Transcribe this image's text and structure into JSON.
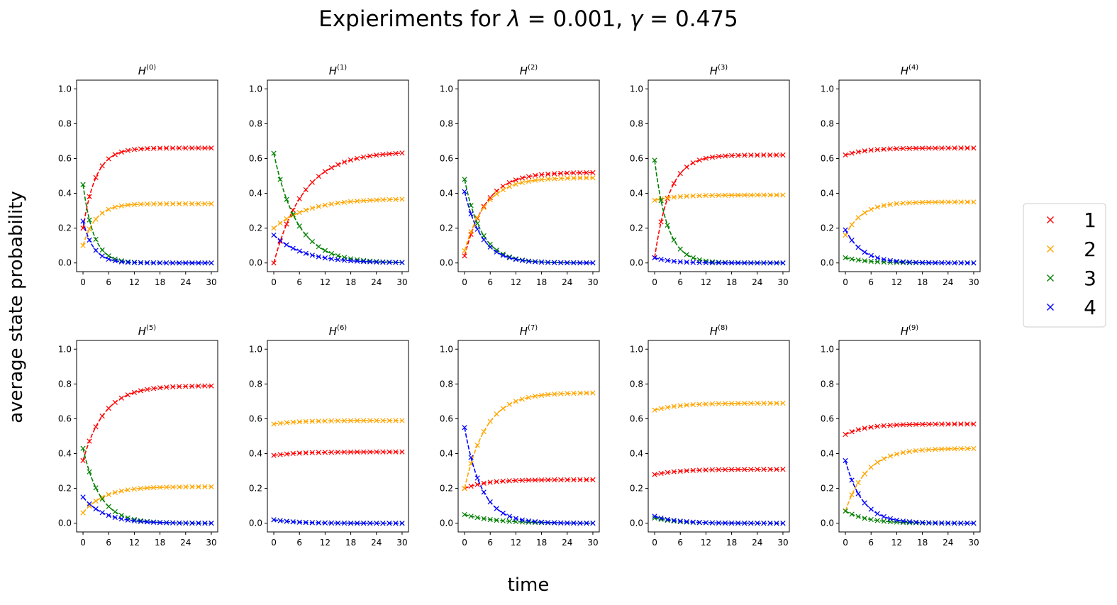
{
  "figure": {
    "title_prefix": "Expieriments for ",
    "title_lambda_symbol": "λ",
    "title_lambda_value": " = 0.001, ",
    "title_gamma_symbol": "γ",
    "title_gamma_value": " = 0.475",
    "xlabel": "time",
    "ylabel": "average state probability"
  },
  "colors": {
    "1": "#ff0000",
    "2": "#ffa500",
    "3": "#008000",
    "4": "#0000ff"
  },
  "legend": [
    {
      "key": "1",
      "label": "1"
    },
    {
      "key": "2",
      "label": "2"
    },
    {
      "key": "3",
      "label": "3"
    },
    {
      "key": "4",
      "label": "4"
    }
  ],
  "chart_data": [
    {
      "type": "line",
      "title_base": "H",
      "title_sup": "(0)",
      "xlim": [
        0,
        30
      ],
      "ylim": [
        0,
        1
      ],
      "xticks": [
        "0",
        "6",
        "12",
        "18",
        "24",
        "30"
      ],
      "yticks": [
        "0.0",
        "0.2",
        "0.4",
        "0.6",
        "0.8",
        "1.0"
      ],
      "series": [
        {
          "key": "1",
          "start": 0.2,
          "end": 0.66,
          "tau": 3.0
        },
        {
          "key": "2",
          "start": 0.1,
          "end": 0.34,
          "tau": 3.0
        },
        {
          "key": "3",
          "start": 0.45,
          "end": 0.0,
          "tau": 2.5
        },
        {
          "key": "4",
          "start": 0.24,
          "end": 0.0,
          "tau": 2.5
        }
      ]
    },
    {
      "type": "line",
      "title_base": "H",
      "title_sup": "(1)",
      "xlim": [
        0,
        30
      ],
      "ylim": [
        0,
        1
      ],
      "xticks": [
        "0",
        "6",
        "12",
        "18",
        "24",
        "30"
      ],
      "yticks": [
        "0.0",
        "0.2",
        "0.4",
        "0.6",
        "0.8",
        "1.0"
      ],
      "series": [
        {
          "key": "1",
          "start": 0.0,
          "end": 0.64,
          "tau": 7.0
        },
        {
          "key": "2",
          "start": 0.2,
          "end": 0.37,
          "tau": 8.0
        },
        {
          "key": "3",
          "start": 0.63,
          "end": 0.0,
          "tau": 5.5
        },
        {
          "key": "4",
          "start": 0.16,
          "end": 0.0,
          "tau": 7.0
        }
      ]
    },
    {
      "type": "line",
      "title_base": "H",
      "title_sup": "(2)",
      "xlim": [
        0,
        30
      ],
      "ylim": [
        0,
        1
      ],
      "xticks": [
        "0",
        "6",
        "12",
        "18",
        "24",
        "30"
      ],
      "yticks": [
        "0.0",
        "0.2",
        "0.4",
        "0.6",
        "0.8",
        "1.0"
      ],
      "series": [
        {
          "key": "1",
          "start": 0.04,
          "end": 0.52,
          "tau": 5.0
        },
        {
          "key": "2",
          "start": 0.07,
          "end": 0.49,
          "tau": 5.0
        },
        {
          "key": "3",
          "start": 0.48,
          "end": 0.0,
          "tau": 4.0
        },
        {
          "key": "4",
          "start": 0.41,
          "end": 0.0,
          "tau": 4.0
        }
      ]
    },
    {
      "type": "line",
      "title_base": "H",
      "title_sup": "(3)",
      "xlim": [
        0,
        30
      ],
      "ylim": [
        0,
        1
      ],
      "xticks": [
        "0",
        "6",
        "12",
        "18",
        "24",
        "30"
      ],
      "yticks": [
        "0.0",
        "0.2",
        "0.4",
        "0.6",
        "0.8",
        "1.0"
      ],
      "series": [
        {
          "key": "1",
          "start": 0.03,
          "end": 0.62,
          "tau": 3.5
        },
        {
          "key": "2",
          "start": 0.36,
          "end": 0.39,
          "tau": 5.0
        },
        {
          "key": "3",
          "start": 0.59,
          "end": 0.0,
          "tau": 3.0
        },
        {
          "key": "4",
          "start": 0.03,
          "end": 0.0,
          "tau": 4.0
        }
      ]
    },
    {
      "type": "line",
      "title_base": "H",
      "title_sup": "(4)",
      "xlim": [
        0,
        30
      ],
      "ylim": [
        0,
        1
      ],
      "xticks": [
        "0",
        "6",
        "12",
        "18",
        "24",
        "30"
      ],
      "yticks": [
        "0.0",
        "0.2",
        "0.4",
        "0.6",
        "0.8",
        "1.0"
      ],
      "series": [
        {
          "key": "1",
          "start": 0.62,
          "end": 0.66,
          "tau": 5.0
        },
        {
          "key": "2",
          "start": 0.16,
          "end": 0.35,
          "tau": 4.0
        },
        {
          "key": "3",
          "start": 0.03,
          "end": 0.0,
          "tau": 5.0
        },
        {
          "key": "4",
          "start": 0.19,
          "end": 0.0,
          "tau": 4.0
        }
      ]
    },
    {
      "type": "line",
      "title_base": "H",
      "title_sup": "(5)",
      "xlim": [
        0,
        30
      ],
      "ylim": [
        0,
        1
      ],
      "xticks": [
        "0",
        "6",
        "12",
        "18",
        "24",
        "30"
      ],
      "yticks": [
        "0.0",
        "0.2",
        "0.4",
        "0.6",
        "0.8",
        "1.0"
      ],
      "series": [
        {
          "key": "1",
          "start": 0.36,
          "end": 0.79,
          "tau": 5.0
        },
        {
          "key": "2",
          "start": 0.06,
          "end": 0.21,
          "tau": 5.0
        },
        {
          "key": "3",
          "start": 0.43,
          "end": 0.0,
          "tau": 4.0
        },
        {
          "key": "4",
          "start": 0.15,
          "end": 0.0,
          "tau": 5.0
        }
      ]
    },
    {
      "type": "line",
      "title_base": "H",
      "title_sup": "(6)",
      "xlim": [
        0,
        30
      ],
      "ylim": [
        0,
        1
      ],
      "xticks": [
        "0",
        "6",
        "12",
        "18",
        "24",
        "30"
      ],
      "yticks": [
        "0.0",
        "0.2",
        "0.4",
        "0.6",
        "0.8",
        "1.0"
      ],
      "series": [
        {
          "key": "1",
          "start": 0.39,
          "end": 0.41,
          "tau": 6.0
        },
        {
          "key": "2",
          "start": 0.57,
          "end": 0.59,
          "tau": 6.0
        },
        {
          "key": "3",
          "start": 0.02,
          "end": 0.0,
          "tau": 5.0
        },
        {
          "key": "4",
          "start": 0.02,
          "end": 0.0,
          "tau": 5.0
        }
      ]
    },
    {
      "type": "line",
      "title_base": "H",
      "title_sup": "(7)",
      "xlim": [
        0,
        30
      ],
      "ylim": [
        0,
        1
      ],
      "xticks": [
        "0",
        "6",
        "12",
        "18",
        "24",
        "30"
      ],
      "yticks": [
        "0.0",
        "0.2",
        "0.4",
        "0.6",
        "0.8",
        "1.0"
      ],
      "series": [
        {
          "key": "1",
          "start": 0.2,
          "end": 0.25,
          "tau": 5.0
        },
        {
          "key": "2",
          "start": 0.2,
          "end": 0.75,
          "tau": 5.0
        },
        {
          "key": "3",
          "start": 0.05,
          "end": 0.0,
          "tau": 7.0
        },
        {
          "key": "4",
          "start": 0.55,
          "end": 0.0,
          "tau": 4.0
        }
      ]
    },
    {
      "type": "line",
      "title_base": "H",
      "title_sup": "(8)",
      "xlim": [
        0,
        30
      ],
      "ylim": [
        0,
        1
      ],
      "xticks": [
        "0",
        "6",
        "12",
        "18",
        "24",
        "30"
      ],
      "yticks": [
        "0.0",
        "0.2",
        "0.4",
        "0.6",
        "0.8",
        "1.0"
      ],
      "series": [
        {
          "key": "1",
          "start": 0.28,
          "end": 0.31,
          "tau": 6.0
        },
        {
          "key": "2",
          "start": 0.65,
          "end": 0.69,
          "tau": 6.0
        },
        {
          "key": "3",
          "start": 0.03,
          "end": 0.0,
          "tau": 5.0
        },
        {
          "key": "4",
          "start": 0.04,
          "end": 0.0,
          "tau": 5.0
        }
      ]
    },
    {
      "type": "line",
      "title_base": "H",
      "title_sup": "(9)",
      "xlim": [
        0,
        30
      ],
      "ylim": [
        0,
        1
      ],
      "xticks": [
        "0",
        "6",
        "12",
        "18",
        "24",
        "30"
      ],
      "yticks": [
        "0.0",
        "0.2",
        "0.4",
        "0.6",
        "0.8",
        "1.0"
      ],
      "series": [
        {
          "key": "1",
          "start": 0.51,
          "end": 0.57,
          "tau": 5.0
        },
        {
          "key": "2",
          "start": 0.07,
          "end": 0.43,
          "tau": 5.0
        },
        {
          "key": "3",
          "start": 0.07,
          "end": 0.0,
          "tau": 5.0
        },
        {
          "key": "4",
          "start": 0.36,
          "end": 0.0,
          "tau": 4.0
        }
      ]
    }
  ]
}
